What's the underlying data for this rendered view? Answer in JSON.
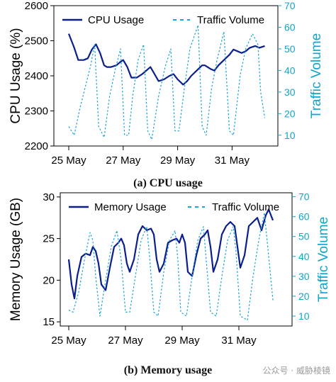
{
  "captions": {
    "a": "(a) CPU usage",
    "b": "(b) Memory usage"
  },
  "watermark": "公众号 · 威胁棱镜",
  "colors": {
    "primary": "#0b1f8c",
    "traffic": "#1aa3d6",
    "right_axis": "#11a6c9"
  },
  "chart_data": [
    {
      "type": "line",
      "ylabel": "CPU Usage (%)",
      "y2label": "Traffic Volume",
      "ylim": [
        2200,
        2600
      ],
      "yticks": [
        2200,
        2300,
        2400,
        2500,
        2600
      ],
      "y2lim": [
        5,
        70
      ],
      "y2ticks": [
        10,
        20,
        30,
        40,
        50,
        60,
        70
      ],
      "xlim": [
        0,
        7.5
      ],
      "xticks": [
        {
          "x": 0,
          "label": "25 May"
        },
        {
          "x": 2,
          "label": "27 May"
        },
        {
          "x": 4,
          "label": "29 May"
        },
        {
          "x": 6,
          "label": "31 May"
        }
      ],
      "legend": {
        "position": "top",
        "entries": [
          "CPU Usage",
          "Traffic Volume"
        ]
      },
      "series": [
        {
          "name": "CPU Usage",
          "axis": "left",
          "style": "solid",
          "x": [
            0.0,
            0.2,
            0.35,
            0.55,
            0.7,
            0.85,
            1.0,
            1.15,
            1.3,
            1.4,
            1.55,
            1.75,
            1.9,
            2.0,
            2.15,
            2.3,
            2.5,
            2.7,
            2.85,
            3.0,
            3.15,
            3.3,
            3.5,
            3.7,
            3.85,
            4.0,
            4.2,
            4.35,
            4.5,
            4.7,
            4.9,
            5.0,
            5.2,
            5.35,
            5.5,
            5.7,
            5.9,
            6.05,
            6.2,
            6.35,
            6.5,
            6.65,
            6.85,
            7.0,
            7.2
          ],
          "values": [
            2520,
            2480,
            2445,
            2445,
            2450,
            2475,
            2490,
            2465,
            2430,
            2425,
            2425,
            2430,
            2440,
            2445,
            2425,
            2395,
            2395,
            2405,
            2415,
            2425,
            2405,
            2385,
            2390,
            2400,
            2405,
            2390,
            2375,
            2385,
            2400,
            2415,
            2430,
            2430,
            2420,
            2415,
            2430,
            2445,
            2460,
            2475,
            2470,
            2465,
            2470,
            2480,
            2485,
            2480,
            2485
          ]
        },
        {
          "name": "Traffic Volume",
          "axis": "right",
          "style": "dashed",
          "x": [
            0.0,
            0.2,
            0.4,
            0.6,
            0.8,
            0.95,
            1.1,
            1.3,
            1.5,
            1.7,
            1.9,
            2.05,
            2.2,
            2.35,
            2.55,
            2.75,
            2.9,
            3.05,
            3.3,
            3.55,
            3.75,
            3.9,
            4.05,
            4.25,
            4.45,
            4.75,
            4.9,
            5.05,
            5.25,
            5.45,
            5.7,
            5.9,
            6.05,
            6.3,
            6.5,
            6.75,
            6.95,
            7.05,
            7.2
          ],
          "values": [
            14,
            10,
            22,
            32,
            42,
            52,
            14,
            9,
            28,
            40,
            50,
            10,
            10,
            28,
            45,
            52,
            12,
            8,
            28,
            42,
            50,
            12,
            12,
            32,
            50,
            61,
            14,
            10,
            32,
            45,
            58,
            12,
            10,
            38,
            50,
            57,
            52,
            30,
            18
          ]
        }
      ]
    },
    {
      "type": "line",
      "ylabel": "Memory Usage (GB)",
      "y2label": "Traffic Volume",
      "ylim": [
        14.5,
        30.5
      ],
      "yticks": [
        15,
        20,
        25,
        30
      ],
      "y2lim": [
        5,
        72
      ],
      "y2ticks": [
        10,
        20,
        30,
        40,
        50,
        60,
        70
      ],
      "xlim": [
        0,
        7.5
      ],
      "xticks": [
        {
          "x": 0,
          "label": "25 May"
        },
        {
          "x": 2,
          "label": "27 May"
        },
        {
          "x": 4,
          "label": "29 May"
        },
        {
          "x": 6,
          "label": "31 May"
        }
      ],
      "legend": {
        "position": "top",
        "entries": [
          "Memory Usage",
          "Traffic Volume"
        ]
      },
      "series": [
        {
          "name": "Memory Usage",
          "axis": "left",
          "style": "solid",
          "x": [
            0.0,
            0.1,
            0.2,
            0.3,
            0.45,
            0.6,
            0.75,
            0.85,
            0.95,
            1.05,
            1.15,
            1.3,
            1.45,
            1.6,
            1.75,
            1.85,
            1.95,
            2.05,
            2.15,
            2.3,
            2.45,
            2.6,
            2.75,
            2.9,
            3.0,
            3.1,
            3.2,
            3.35,
            3.5,
            3.65,
            3.8,
            3.9,
            4.0,
            4.1,
            4.2,
            4.35,
            4.5,
            4.65,
            4.8,
            4.9,
            5.0,
            5.1,
            5.25,
            5.4,
            5.55,
            5.7,
            5.85,
            5.95,
            6.05,
            6.2,
            6.35,
            6.5,
            6.65,
            6.8,
            6.95,
            7.05,
            7.2
          ],
          "values": [
            22.5,
            19.5,
            17.8,
            20.5,
            22.8,
            23.2,
            23.0,
            24.0,
            23.5,
            22.0,
            19.5,
            18.8,
            21.5,
            24.0,
            24.5,
            25.0,
            24.2,
            22.0,
            21.0,
            22.5,
            25.5,
            26.5,
            26.0,
            26.2,
            25.5,
            22.5,
            21.0,
            22.0,
            24.5,
            24.8,
            25.0,
            24.5,
            25.5,
            24.5,
            21.0,
            20.5,
            23.0,
            25.0,
            25.5,
            26.0,
            24.0,
            21.0,
            22.5,
            25.5,
            26.5,
            27.0,
            26.5,
            24.0,
            21.5,
            23.0,
            26.5,
            27.0,
            27.5,
            26.0,
            27.8,
            28.5,
            27.2
          ]
        },
        {
          "name": "Traffic Volume",
          "axis": "right",
          "style": "dashed",
          "x": [
            0.0,
            0.15,
            0.35,
            0.55,
            0.75,
            0.85,
            0.95,
            1.1,
            1.3,
            1.5,
            1.7,
            1.85,
            2.0,
            2.15,
            2.35,
            2.55,
            2.75,
            2.85,
            3.0,
            3.15,
            3.35,
            3.55,
            3.75,
            3.85,
            3.95,
            4.15,
            4.35,
            4.55,
            4.75,
            4.85,
            5.0,
            5.2,
            5.4,
            5.6,
            5.8,
            5.9,
            6.05,
            6.3,
            6.5,
            6.7,
            6.9,
            7.05,
            7.2
          ],
          "values": [
            13,
            12,
            22,
            38,
            52,
            48,
            30,
            10,
            28,
            45,
            53,
            38,
            12,
            12,
            30,
            48,
            55,
            40,
            12,
            10,
            32,
            48,
            53,
            38,
            12,
            10,
            30,
            48,
            55,
            38,
            12,
            10,
            30,
            48,
            55,
            42,
            10,
            8,
            30,
            48,
            62,
            40,
            18
          ]
        }
      ]
    }
  ]
}
